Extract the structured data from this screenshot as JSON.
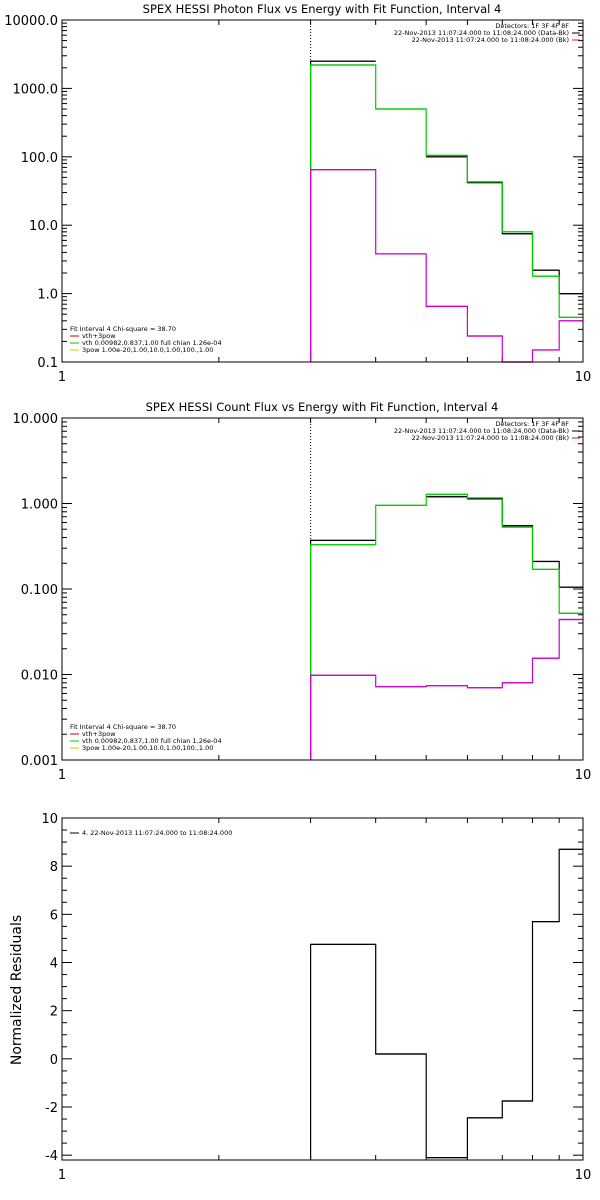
{
  "chart_data": [
    {
      "type": "line",
      "title": "SPEX HESSI Photon Flux vs Energy with Fit Function, Interval 4",
      "xscale": "log",
      "yscale": "log",
      "xlim": [
        1,
        10
      ],
      "ylim": [
        0.1,
        10000
      ],
      "xticks": [
        {
          "v": 1,
          "label": "1"
        },
        {
          "v": 10,
          "label": "10"
        }
      ],
      "yticks": [
        {
          "v": 0.1,
          "label": "0.1"
        },
        {
          "v": 1,
          "label": "1.0"
        },
        {
          "v": 10,
          "label": "10.0"
        },
        {
          "v": 100,
          "label": "100.0"
        },
        {
          "v": 1000,
          "label": "1000.0"
        },
        {
          "v": 10000,
          "label": "10000.0"
        }
      ],
      "xlabel": "",
      "ylabel": "",
      "vline_x": 3,
      "bin_edges": [
        3,
        4,
        5,
        6,
        7,
        8,
        9,
        10
      ],
      "series": [
        {
          "color": "#000000",
          "values": [
            2500,
            null,
            100,
            42,
            7.5,
            2.2,
            1.0
          ]
        },
        {
          "color": "#00cc00",
          "values": [
            2200,
            500,
            105,
            43,
            8.0,
            1.8,
            0.45
          ]
        },
        {
          "color": "#cc00cc",
          "values": [
            65,
            3.8,
            0.65,
            0.24,
            0.1,
            0.15,
            0.4
          ]
        }
      ],
      "header_lines": [
        "Detectors: 1F 3F 4F 8F",
        "22-Nov-2013 11:07:24.000 to 11:08:24.000 (Data-Bk)",
        "22-Nov-2013 11:07:24.000 to 11:08:24.000 (Bk)"
      ],
      "header_colors": [
        "",
        "#000000",
        "#cc00cc"
      ],
      "legend_lines": [
        "Fit Interval 4   Chi-square = 38.70",
        "vth+3pow",
        "vth 0.00982,0.837,1.00  full chian 1.26e-04",
        "3pow 1.00e-20,1.00,10.0,1.00,100.,1.00"
      ],
      "legend_colors": [
        "",
        "#cc0000",
        "#00cc00",
        "#cccc00"
      ]
    },
    {
      "type": "line",
      "title": "SPEX HESSI Count Flux vs Energy with Fit Function, Interval 4",
      "xscale": "log",
      "yscale": "log",
      "xlim": [
        1,
        10
      ],
      "ylim": [
        0.001,
        10
      ],
      "xticks": [
        {
          "v": 1,
          "label": "1"
        },
        {
          "v": 10,
          "label": "10"
        }
      ],
      "yticks": [
        {
          "v": 0.001,
          "label": "0.001"
        },
        {
          "v": 0.01,
          "label": "0.010"
        },
        {
          "v": 0.1,
          "label": "0.100"
        },
        {
          "v": 1,
          "label": "1.000"
        },
        {
          "v": 10,
          "label": "10.000"
        }
      ],
      "xlabel": "",
      "ylabel": "",
      "vline_x": 3,
      "bin_edges": [
        3,
        4,
        5,
        6,
        7,
        8,
        9,
        10
      ],
      "series": [
        {
          "color": "#000000",
          "values": [
            0.37,
            null,
            1.2,
            1.15,
            0.55,
            0.21,
            0.105
          ]
        },
        {
          "color": "#00cc00",
          "values": [
            0.33,
            0.95,
            1.28,
            1.12,
            0.53,
            0.17,
            0.052
          ]
        },
        {
          "color": "#cc00cc",
          "values": [
            0.0098,
            0.0072,
            0.0074,
            0.007,
            0.008,
            0.0155,
            0.044
          ]
        }
      ],
      "header_lines": [
        "Detectors: 1F 3F 4F 8F",
        "22-Nov-2013 11:07:24.000 to 11:08:24.000 (Data-Bk)",
        "22-Nov-2013 11:07:24.000 to 11:08:24.000 (Bk)"
      ],
      "header_colors": [
        "",
        "#000000",
        "#cc00cc"
      ],
      "legend_lines": [
        "Fit Interval 4   Chi-square = 38.70",
        "vth+3pow",
        "vth 0.00982,0.837,1.00  full chian 1.26e-04",
        "3pow 1.00e-20,1.00,10.0,1.00,100.,1.00"
      ],
      "legend_colors": [
        "",
        "#cc0000",
        "#00cc00",
        "#cccc00"
      ]
    },
    {
      "type": "line",
      "title": "",
      "xscale": "log",
      "yscale": "linear",
      "xlim": [
        1,
        10
      ],
      "ylim": [
        -4.2,
        10
      ],
      "xticks": [
        {
          "v": 1,
          "label": "1"
        },
        {
          "v": 10,
          "label": "10"
        }
      ],
      "yticks": [
        {
          "v": -4,
          "label": "-4"
        },
        {
          "v": -2,
          "label": "-2"
        },
        {
          "v": 0,
          "label": "0"
        },
        {
          "v": 2,
          "label": "2"
        },
        {
          "v": 4,
          "label": "4"
        },
        {
          "v": 6,
          "label": "6"
        },
        {
          "v": 8,
          "label": "8"
        },
        {
          "v": 10,
          "label": "10"
        }
      ],
      "xlabel": "",
      "ylabel": "Normalized Residuals",
      "bin_edges": [
        3,
        4,
        5,
        6,
        7,
        8,
        9,
        10
      ],
      "series": [
        {
          "color": "#000000",
          "values": [
            4.75,
            0.2,
            -4.1,
            -2.45,
            -1.75,
            5.7,
            8.7
          ]
        }
      ],
      "legend_lines": [
        "4. 22-Nov-2013 11:07:24.000 to 11:08:24.000"
      ],
      "legend_colors": [
        "#000000"
      ]
    }
  ]
}
